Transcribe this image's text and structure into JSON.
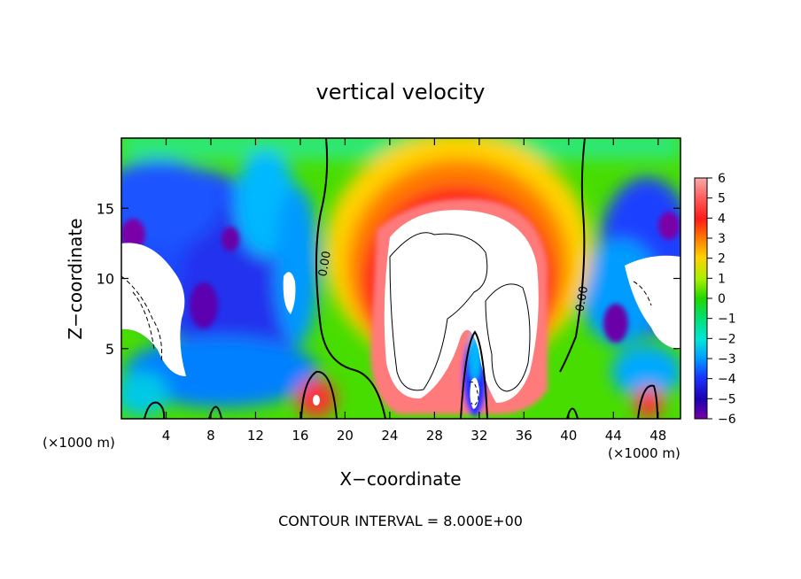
{
  "chart_data": {
    "type": "heatmap",
    "title": "vertical velocity",
    "xlabel": "X−coordinate",
    "ylabel": "Z−coordinate",
    "x_unit_left": "(×1000 m)",
    "x_unit_right": "(×1000 m)",
    "footer": "CONTOUR INTERVAL = 8.000E+00",
    "xlim": [
      0,
      50
    ],
    "ylim": [
      0,
      20
    ],
    "x_ticks": [
      4,
      8,
      12,
      16,
      20,
      24,
      28,
      32,
      36,
      40,
      44,
      48
    ],
    "y_ticks": [
      5,
      10,
      15
    ],
    "colorbar": {
      "min": -6,
      "max": 6,
      "ticks": [
        "6",
        "5",
        "4",
        "3",
        "2",
        "1",
        "0",
        "−1",
        "−2",
        "−3",
        "−4",
        "−5",
        "−6"
      ],
      "out_of_range_color": "#ffffff"
    },
    "contour_labels": [
      {
        "text": "0.00",
        "x": 18.5,
        "y": 11
      },
      {
        "text": "0.00",
        "x": 41.5,
        "y": 8.5
      }
    ],
    "background_value": 0.5
  },
  "colors": {
    "frame": "#000000",
    "saturated": "#ffffff"
  }
}
